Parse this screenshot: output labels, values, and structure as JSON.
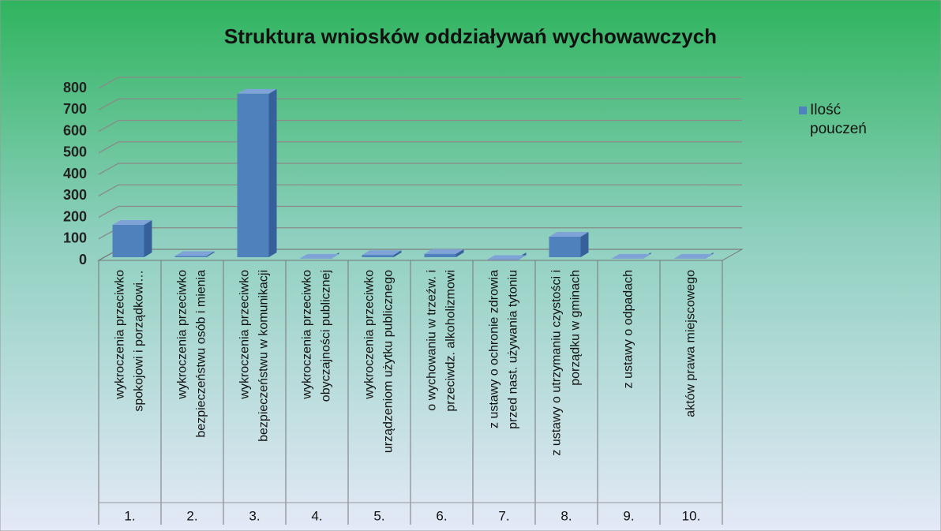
{
  "chart_data": {
    "type": "bar3d",
    "title": "Struktura wniosków oddziaływań wychowawczych",
    "categories": [
      [
        "wykroczenia przeciwko",
        "spokojowi i porządkowi…"
      ],
      [
        "wykroczenia przeciwko",
        "bezpieczeństwu osób i mienia"
      ],
      [
        "wykroczenia przeciwko",
        "bezpieczeństwu w komunikacji"
      ],
      [
        "wykroczenia przeciwko",
        "obyczajności publicznej"
      ],
      [
        "wykroczenia przeciwko",
        "urządzeniom użytku publicznego"
      ],
      [
        "o wychowaniu w trzeźw. i",
        "przeciwdz. alkoholizmowi"
      ],
      [
        "z ustawy o ochronie zdrowia",
        "przed nast. używania tytoniu"
      ],
      [
        "z ustawy o utrzymaniu czystości i",
        "porządku w  gminach"
      ],
      [
        "z ustawy o odpadach"
      ],
      [
        "aktów prawa miejscowego"
      ]
    ],
    "category_numbers": [
      "1.",
      "2.",
      "3.",
      "4.",
      "5.",
      "6.",
      "7.",
      "8.",
      "9.",
      "10."
    ],
    "series": [
      {
        "name": "Ilość pouczeń",
        "color": "#4f81bd",
        "values": [
          165,
          20,
          775,
          8,
          25,
          30,
          2,
          110,
          8,
          8
        ]
      }
    ],
    "ylim": [
      0,
      800
    ],
    "yticks": [
      0,
      100,
      200,
      300,
      400,
      500,
      600,
      700,
      800
    ],
    "grid": true,
    "legend": "right"
  }
}
